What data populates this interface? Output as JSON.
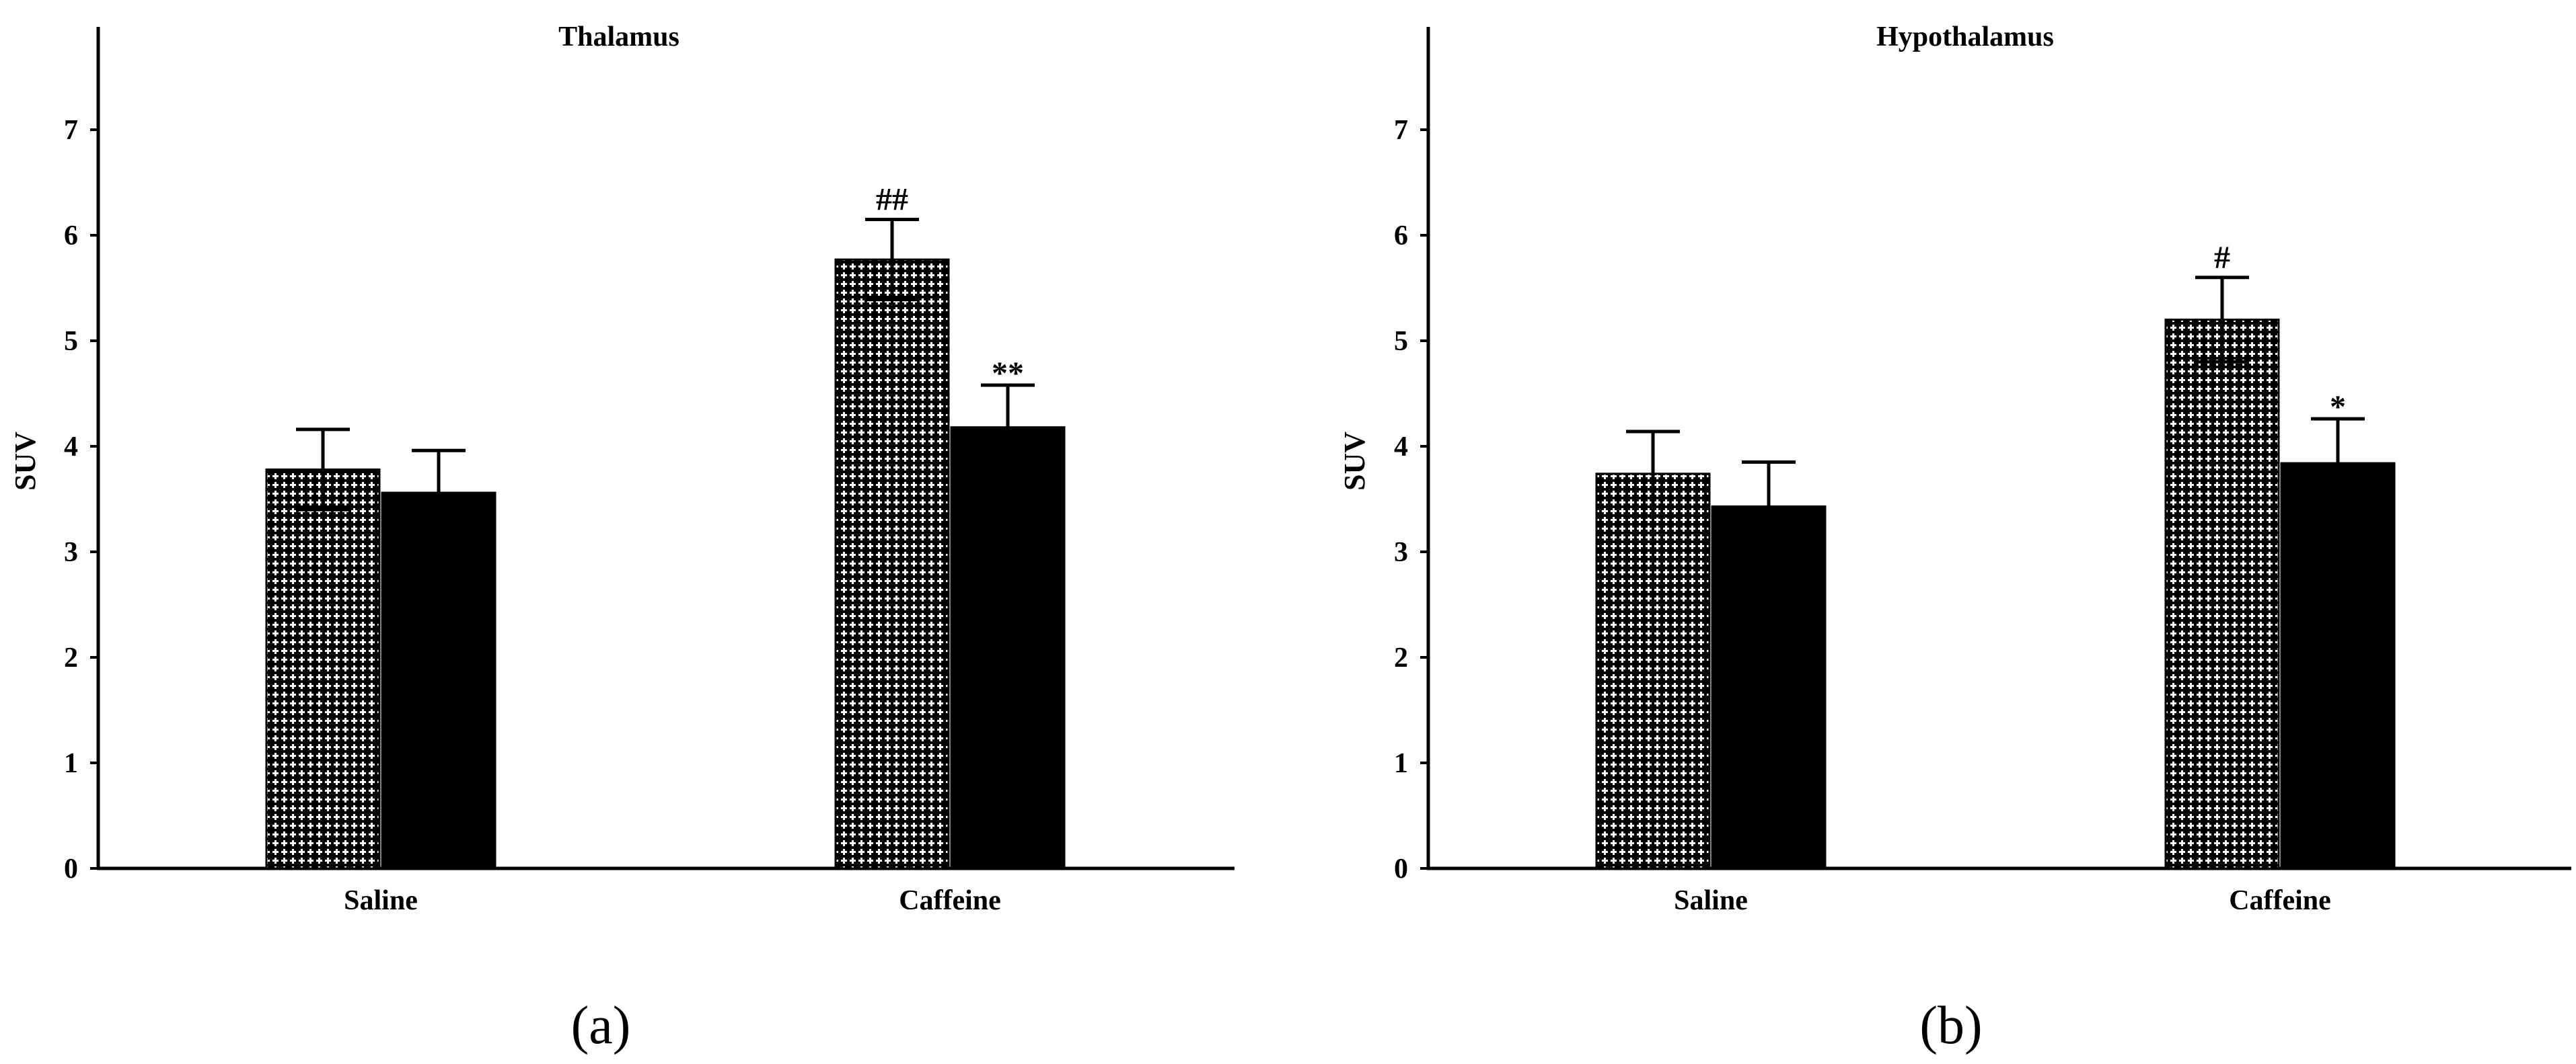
{
  "chart_data": [
    {
      "type": "bar",
      "title": "Thalamus",
      "ylabel": "SUV",
      "ylim": [
        0,
        8
      ],
      "yticks": [
        "0",
        "1",
        "2",
        "3",
        "4",
        "5",
        "6",
        "7"
      ],
      "categories": [
        "Saline",
        "Caffeine"
      ],
      "series": [
        {
          "pattern": "checkered",
          "values": [
            3.78,
            5.77
          ],
          "errors": [
            0.38,
            0.38
          ]
        },
        {
          "pattern": "solid-black",
          "values": [
            3.56,
            4.18
          ],
          "errors": [
            0.4,
            0.4
          ]
        }
      ],
      "annotations": [
        {
          "text": "##",
          "category": "Caffeine",
          "series": 0
        },
        {
          "text": "**",
          "category": "Caffeine",
          "series": 1
        }
      ],
      "panel_label": "(a)",
      "grid": false,
      "legend": "none"
    },
    {
      "type": "bar",
      "title": "Hypothalamus",
      "ylabel": "SUV",
      "ylim": [
        0,
        8
      ],
      "yticks": [
        "0",
        "1",
        "2",
        "3",
        "4",
        "5",
        "6",
        "7"
      ],
      "categories": [
        "Saline",
        "Caffeine"
      ],
      "series": [
        {
          "pattern": "checkered",
          "values": [
            3.74,
            5.2
          ],
          "errors": [
            0.4,
            0.4
          ]
        },
        {
          "pattern": "solid-black",
          "values": [
            3.43,
            3.84
          ],
          "errors": [
            0.42,
            0.42
          ]
        }
      ],
      "annotations": [
        {
          "text": "#",
          "category": "Caffeine",
          "series": 0
        },
        {
          "text": "*",
          "category": "Caffeine",
          "series": 1
        }
      ],
      "panel_label": "(b)",
      "grid": false,
      "legend": "none"
    }
  ]
}
